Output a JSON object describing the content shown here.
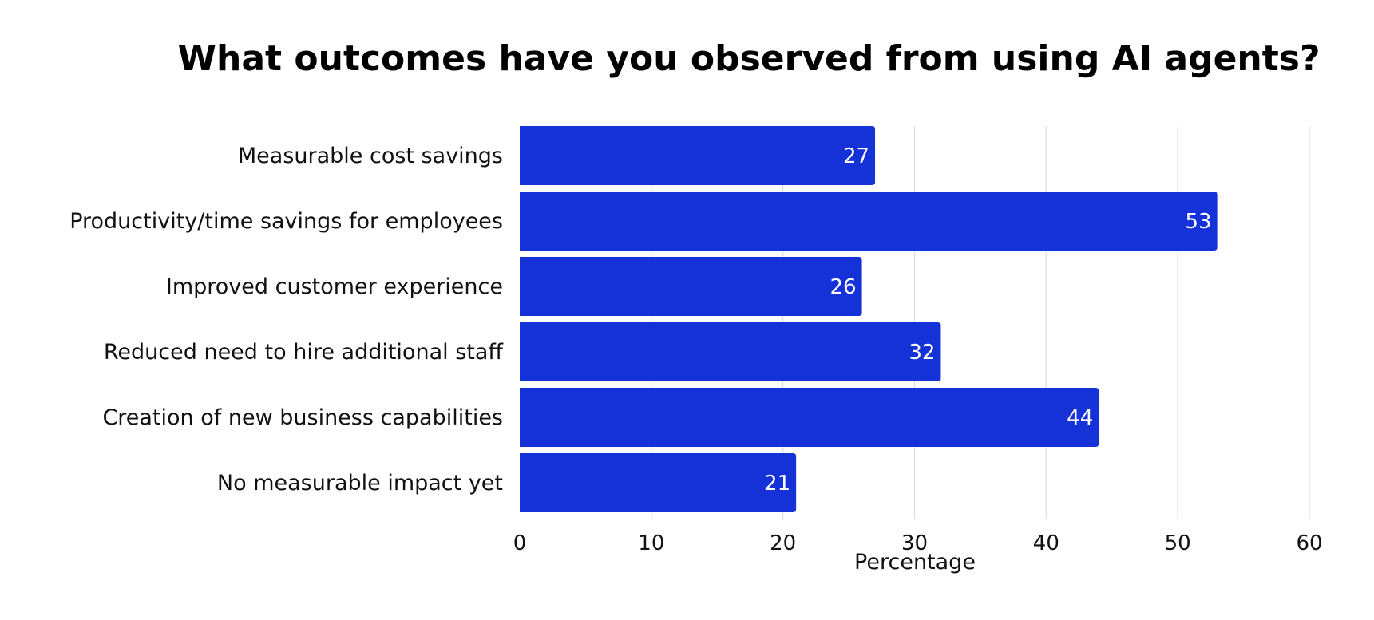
{
  "chart_data": {
    "type": "bar",
    "orientation": "horizontal",
    "title": "What outcomes have you observed from using AI agents?",
    "xlabel": "Percentage",
    "ylabel": "",
    "categories": [
      "Measurable cost savings",
      "Productivity/time savings for employees",
      "Improved customer experience",
      "Reduced need to hire additional staff",
      "Creation of new business capabilities",
      "No measurable impact yet"
    ],
    "values": [
      27,
      53,
      26,
      32,
      44,
      21
    ],
    "xlim": [
      0,
      60
    ],
    "xticks": [
      "0",
      "10",
      "20",
      "30",
      "40",
      "50",
      "60"
    ],
    "grid": "vertical",
    "legend": "none",
    "bar_color": "#1532D9",
    "data_label_color": "#FFFFFF",
    "data_labels": [
      "27",
      "53",
      "26",
      "32",
      "44",
      "21"
    ]
  }
}
